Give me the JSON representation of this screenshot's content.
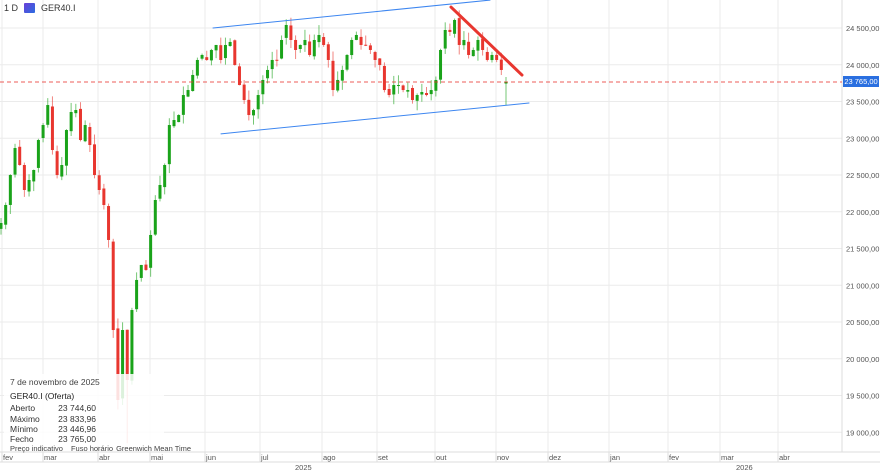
{
  "header": {
    "interval": "1 D",
    "symbol": "GER40.I",
    "symbol_icon": "cfd-icon"
  },
  "legend": {
    "date": "7 de novembro de 2025",
    "title": "GER40.I (Oferta)",
    "rows": [
      {
        "label": "Aberto",
        "value": "23 744,60"
      },
      {
        "label": "Máximo",
        "value": "23 833,96"
      },
      {
        "label": "Mínimo",
        "value": "23 446,96"
      },
      {
        "label": "Fecho",
        "value": "23 765,00"
      }
    ]
  },
  "footer": {
    "price_type": "Preço indicativo",
    "timezone_label": "Fuso horário",
    "timezone": "Greenwich Mean Time"
  },
  "current_price_label": "23 765,00",
  "colors": {
    "up": "#1aa31a",
    "down": "#e8362f",
    "channel": "#3d86f0",
    "trendline": "#e8362f",
    "price_tag": "#2a6fe0",
    "grid": "#ebebeb"
  },
  "chart_data": {
    "type": "candlestick",
    "y_ticks": [
      "24 500,00",
      "24 000,00",
      "23 500,00",
      "23 000,00",
      "22 500,00",
      "22 000,00",
      "21 500,00",
      "21 000,00",
      "20 500,00",
      "20 000,00",
      "19 500,00",
      "19 000,00"
    ],
    "y_tick_values": [
      24500,
      24000,
      23500,
      23000,
      22500,
      22000,
      21500,
      21000,
      20500,
      20000,
      19500,
      19000
    ],
    "x_months": [
      "fev",
      "mar",
      "abr",
      "mai",
      "jun",
      "jul",
      "ago",
      "set",
      "out",
      "nov",
      "dez",
      "jan",
      "fev",
      "mar",
      "abr"
    ],
    "x_years": [
      "2025",
      "2026"
    ],
    "closes": [
      21847,
      22092,
      22500,
      22867,
      22636,
      22296,
      22432,
      22568,
      22976,
      23180,
      23452,
      22840,
      22500,
      22636,
      23112,
      23357,
      23384,
      22976,
      23180,
      22908,
      22500,
      22296,
      22092,
      21616,
      20391,
      19439,
      20391,
      19711,
      20663,
      21072,
      21276,
      21208,
      21684,
      22160,
      22364,
      22636,
      23180,
      23248,
      23316,
      23588,
      23656,
      23861,
      24065,
      24133,
      24065,
      24201,
      24269,
      24065,
      24269,
      24310,
      23997,
      23724,
      23520,
      23316,
      23384,
      23588,
      23793,
      23929,
      24065,
      24065,
      24337,
      24541,
      24337,
      24201,
      24269,
      24337,
      24133,
      24337,
      24405,
      24269,
      24065,
      23656,
      23793,
      23929,
      24133,
      24337,
      24405,
      24269,
      24269,
      24201,
      24065,
      23997,
      23656,
      23588,
      23724,
      23724,
      23656,
      23656,
      23520,
      23588,
      23629,
      23588,
      23656,
      23793,
      24201,
      24473,
      24446,
      24609,
      24269,
      24337,
      24133,
      24201,
      24337,
      24201,
      24065,
      24133,
      24065,
      23929,
      23765
    ],
    "last_candle": {
      "open": 23744.6,
      "high": 23833.96,
      "low": 23446.96,
      "close": 23765.0
    },
    "current_price": 23765,
    "drawings": [
      {
        "type": "channel-upper",
        "from": {
          "month": "jun",
          "price": 24500
        },
        "to": {
          "month": "nov",
          "price": 24880
        }
      },
      {
        "type": "channel-lower",
        "from": {
          "month": "jun",
          "price": 23060
        },
        "to": {
          "month": "nov",
          "price": 23480
        }
      },
      {
        "type": "trendline",
        "from": {
          "month": "out",
          "price": 24785
        },
        "to": {
          "month": "nov",
          "price": 23860
        }
      }
    ]
  }
}
